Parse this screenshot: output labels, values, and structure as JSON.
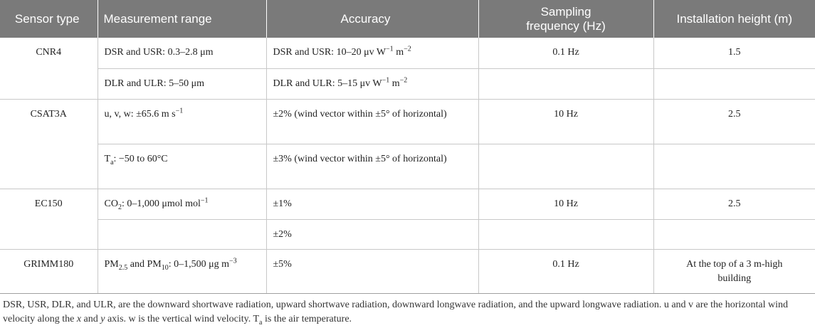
{
  "table": {
    "headers": {
      "sensor_type": "Sensor type",
      "measurement_range": "Measurement range",
      "accuracy": "Accuracy",
      "sampling_frequency": "Sampling frequency (Hz)",
      "installation_height": "Installation height (m)"
    },
    "cnr4": {
      "sensor": "CNR4",
      "range1": "DSR and USR: 0.3–2.8 μm",
      "acc1_main": "DSR and USR: 10–20 μv W",
      "acc1_sup1": "−1",
      "acc1_mid": " m",
      "acc1_sup2": "−2",
      "freq": "0.1 Hz",
      "height": "1.5",
      "range2": "DLR and ULR: 5–50 μm",
      "acc2_main": "DLR and ULR: 5–15 μv W",
      "acc2_sup1": "−1",
      "acc2_mid": " m",
      "acc2_sup2": "−2"
    },
    "csat3a": {
      "sensor": "CSAT3A",
      "range1_main": "u, v, w: ±65.6 m s",
      "range1_sup": "−1",
      "acc1": "±2% (wind vector within ±5° of horizontal)",
      "freq": "10 Hz",
      "height": "2.5",
      "range2_t": "T",
      "range2_sub": "a",
      "range2_rest": ": −50 to 60°C",
      "acc2": "±3% (wind vector within ±5° of horizontal)"
    },
    "ec150": {
      "sensor": "EC150",
      "range1_co": "CO",
      "range1_sub": "2",
      "range1_rest": ": 0–1,000 μmol mol",
      "range1_sup": "−1",
      "acc1": "±1%",
      "freq": "10 Hz",
      "height": "2.5",
      "acc2": "±2%"
    },
    "grimm180": {
      "sensor": "GRIMM180",
      "range_pm": "PM",
      "range_sub1": "2.5",
      "range_and": " and PM",
      "range_sub2": "10",
      "range_rest": ": 0–1,500 μg m",
      "range_sup": "−3",
      "acc": "±5%",
      "freq": "0.1 Hz",
      "height": "At the top of a 3 m-high building"
    }
  },
  "footnote": {
    "part1": "DSR, USR, DLR, and ULR, are the downward shortwave radiation, upward shortwave radiation, downward longwave radiation, and the upward longwave radiation. u and v are the horizontal wind velocity along the ",
    "x": "x",
    "part2": " and ",
    "y": "y",
    "part3": " axis. w is the vertical wind velocity. T",
    "sub": "a",
    "part4": " is the air temperature."
  }
}
